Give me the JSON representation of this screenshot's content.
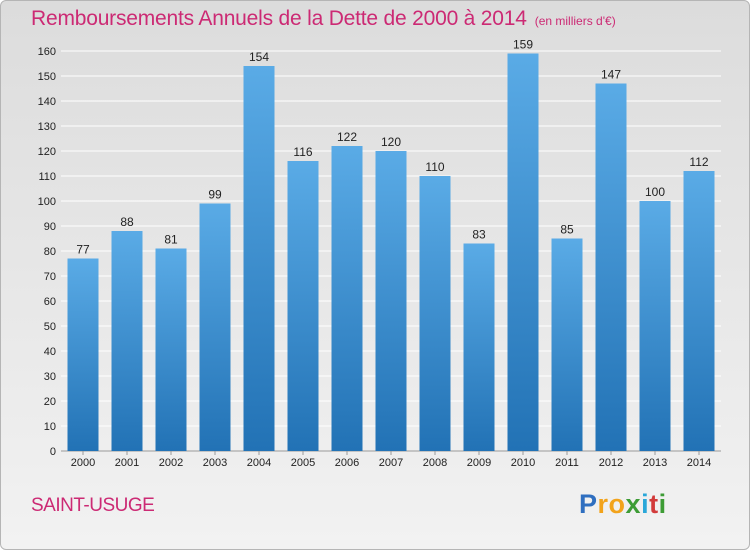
{
  "title": "Remboursements Annuels de la Dette de 2000 à 2014",
  "unit_note": "(en milliers d'€)",
  "commune": "SAINT-USUGE",
  "brand": "Proxiti",
  "colors": {
    "title": "#cc2a74",
    "bar_top": "#5aabe6",
    "bar_bottom": "#2272b5",
    "grid": "#ffffff",
    "axis_text": "#222222"
  },
  "chart_data": {
    "type": "bar",
    "title": "Remboursements Annuels de la Dette de 2000 à 2014",
    "subtitle": "(en milliers d'€)",
    "xlabel": "",
    "ylabel": "",
    "ylim": [
      0,
      160
    ],
    "yticks": [
      0,
      10,
      20,
      30,
      40,
      50,
      60,
      70,
      80,
      90,
      100,
      110,
      120,
      130,
      140,
      150,
      160
    ],
    "grid": true,
    "categories": [
      "2000",
      "2001",
      "2002",
      "2003",
      "2004",
      "2005",
      "2006",
      "2007",
      "2008",
      "2009",
      "2010",
      "2011",
      "2012",
      "2013",
      "2014"
    ],
    "values": [
      77,
      88,
      81,
      99,
      154,
      116,
      122,
      120,
      110,
      83,
      159,
      85,
      147,
      100,
      112
    ]
  }
}
